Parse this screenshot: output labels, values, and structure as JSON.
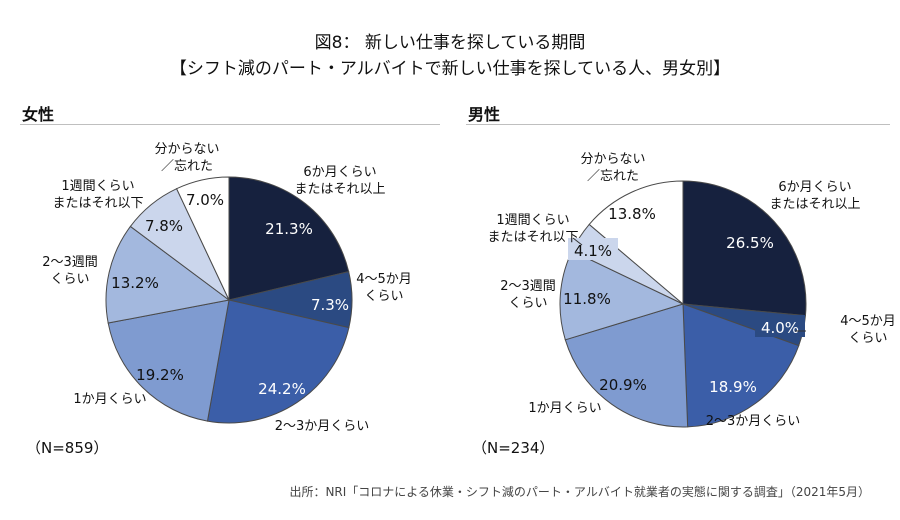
{
  "title": {
    "line1": "図8： 新しい仕事を探している期間",
    "line2": "【シフト減のパート・アルバイトで新しい仕事を探している人、男女別】"
  },
  "source": "出所：NRI「コロナによる休業・シフト減のパート・アルバイト就業者の実態に関する調査」（2021年5月）",
  "chart_data": [
    {
      "type": "pie",
      "title": "女性",
      "n_label": "（N=859）",
      "categories": [
        [
          "6か月くらい",
          "またはそれ以上"
        ],
        [
          "4～5か月",
          "くらい"
        ],
        [
          "2～3か月くらい"
        ],
        [
          "1か月くらい"
        ],
        [
          "2～3週間",
          "くらい"
        ],
        [
          "1週間くらい",
          "またはそれ以下"
        ],
        [
          "分からない",
          "／忘れた"
        ]
      ],
      "values": [
        21.3,
        7.3,
        24.2,
        19.2,
        13.2,
        7.8,
        7.0
      ],
      "value_labels": [
        "21.3%",
        "7.3%",
        "24.2%",
        "19.2%",
        "13.2%",
        "7.8%",
        "7.0%"
      ]
    },
    {
      "type": "pie",
      "title": "男性",
      "n_label": "（N=234）",
      "categories": [
        [
          "6か月くらい",
          "またはそれ以上"
        ],
        [
          "4～5か月",
          "くらい"
        ],
        [
          "2～3か月くらい"
        ],
        [
          "1か月くらい"
        ],
        [
          "2～3週間",
          "くらい"
        ],
        [
          "1週間くらい",
          "またはそれ以下"
        ],
        [
          "分からない",
          "／忘れた"
        ]
      ],
      "values": [
        26.5,
        4.0,
        18.9,
        20.9,
        11.8,
        4.1,
        13.8
      ],
      "value_labels": [
        "26.5%",
        "4.0%",
        "18.9%",
        "20.9%",
        "11.8%",
        "4.1%",
        "13.8%"
      ]
    }
  ],
  "colors": {
    "slices": [
      "#16213e",
      "#2b4a82",
      "#3b5ea8",
      "#7f9bd0",
      "#a3b8de",
      "#cbd6ec",
      "#ffffff"
    ],
    "outline": "#4a4a4a",
    "text_light": "#ffffff",
    "text_dark": "#111111"
  }
}
